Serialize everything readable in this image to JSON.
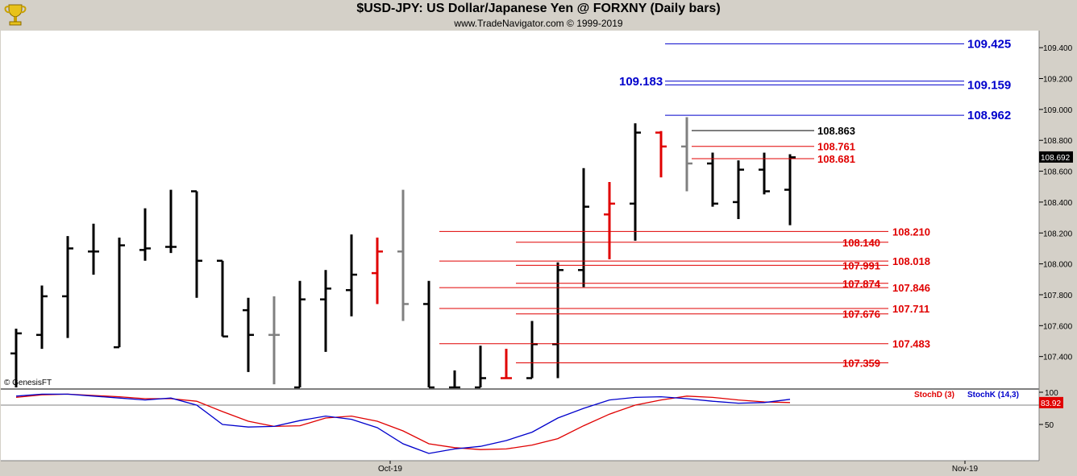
{
  "header": {
    "title": "$USD-JPY:  US Dollar/Japanese Yen @ FORXNY  (Daily bars)",
    "subtitle": "www.TradeNavigator.com © 1999-2019"
  },
  "watermark": "© GenesisFT",
  "colors": {
    "up": "#000000",
    "red": "#e00000",
    "gray": "#808080",
    "blue": "#0000cc"
  },
  "chart_data": [
    {
      "type": "ohlc",
      "ylim": [
        107.2,
        109.5
      ],
      "yticks": [
        "107.400",
        "107.600",
        "107.800",
        "108.000",
        "108.200",
        "108.400",
        "108.600",
        "108.800",
        "109.000",
        "109.200",
        "109.400"
      ],
      "last_price": "108.692",
      "x_labels": [
        "Oct-19",
        "Nov-19"
      ],
      "bars": [
        {
          "o": 107.42,
          "h": 107.58,
          "l": 107.2,
          "c": 107.55,
          "color": "black"
        },
        {
          "o": 107.54,
          "h": 107.86,
          "l": 107.45,
          "c": 107.79,
          "color": "black"
        },
        {
          "o": 107.79,
          "h": 108.18,
          "l": 107.52,
          "c": 108.1,
          "color": "black"
        },
        {
          "o": 108.08,
          "h": 108.26,
          "l": 107.93,
          "c": 108.08,
          "color": "black"
        },
        {
          "o": 107.46,
          "h": 108.17,
          "l": 107.46,
          "c": 108.12,
          "color": "black"
        },
        {
          "o": 108.09,
          "h": 108.36,
          "l": 108.02,
          "c": 108.1,
          "color": "black"
        },
        {
          "o": 108.11,
          "h": 108.48,
          "l": 108.07,
          "c": 108.11,
          "color": "black"
        },
        {
          "o": 108.47,
          "h": 108.47,
          "l": 107.78,
          "c": 108.02,
          "color": "black"
        },
        {
          "o": 108.02,
          "h": 108.02,
          "l": 107.53,
          "c": 107.53,
          "color": "black"
        },
        {
          "o": 107.7,
          "h": 107.78,
          "l": 107.3,
          "c": 107.54,
          "color": "black"
        },
        {
          "o": 107.54,
          "h": 107.79,
          "l": 107.22,
          "c": 107.54,
          "color": "gray"
        },
        {
          "o": 107.2,
          "h": 107.89,
          "l": 107.2,
          "c": 107.77,
          "color": "black"
        },
        {
          "o": 107.77,
          "h": 107.96,
          "l": 107.43,
          "c": 107.84,
          "color": "black"
        },
        {
          "o": 107.83,
          "h": 108.19,
          "l": 107.66,
          "c": 107.93,
          "color": "black"
        },
        {
          "o": 107.94,
          "h": 108.17,
          "l": 107.74,
          "c": 108.08,
          "color": "red"
        },
        {
          "o": 108.08,
          "h": 108.48,
          "l": 107.63,
          "c": 107.74,
          "color": "gray"
        },
        {
          "o": 107.74,
          "h": 107.89,
          "l": 107.2,
          "c": 107.2,
          "color": "black"
        },
        {
          "o": 107.2,
          "h": 107.31,
          "l": 107.2,
          "c": 107.2,
          "color": "black"
        },
        {
          "o": 107.2,
          "h": 107.47,
          "l": 107.2,
          "c": 107.26,
          "color": "black"
        },
        {
          "o": 107.26,
          "h": 107.45,
          "l": 107.26,
          "c": 107.26,
          "color": "red"
        },
        {
          "o": 107.26,
          "h": 107.63,
          "l": 107.26,
          "c": 107.48,
          "color": "black"
        },
        {
          "o": 107.48,
          "h": 108.01,
          "l": 107.26,
          "c": 107.96,
          "color": "black"
        },
        {
          "o": 107.96,
          "h": 108.62,
          "l": 107.85,
          "c": 108.37,
          "color": "black"
        },
        {
          "o": 108.32,
          "h": 108.53,
          "l": 108.03,
          "c": 108.39,
          "color": "red"
        },
        {
          "o": 108.39,
          "h": 108.91,
          "l": 108.15,
          "c": 108.85,
          "color": "black"
        },
        {
          "o": 108.85,
          "h": 108.86,
          "l": 108.56,
          "c": 108.76,
          "color": "red"
        },
        {
          "o": 108.76,
          "h": 108.95,
          "l": 108.47,
          "c": 108.65,
          "color": "gray"
        },
        {
          "o": 108.65,
          "h": 108.72,
          "l": 108.37,
          "c": 108.39,
          "color": "black"
        },
        {
          "o": 108.4,
          "h": 108.67,
          "l": 108.29,
          "c": 108.61,
          "color": "black"
        },
        {
          "o": 108.61,
          "h": 108.72,
          "l": 108.45,
          "c": 108.47,
          "color": "black"
        },
        {
          "o": 108.48,
          "h": 108.71,
          "l": 108.25,
          "c": 108.69,
          "color": "black"
        }
      ],
      "levels": [
        {
          "value": 109.425,
          "label": "109.425",
          "color": "blue",
          "side": "right"
        },
        {
          "value": 109.183,
          "label": "109.183",
          "color": "blue",
          "side": "left"
        },
        {
          "value": 109.159,
          "label": "109.159",
          "color": "blue",
          "side": "right"
        },
        {
          "value": 108.962,
          "label": "108.962",
          "color": "blue",
          "side": "right"
        },
        {
          "value": 108.863,
          "label": "108.863",
          "color": "black",
          "side": "near"
        },
        {
          "value": 108.761,
          "label": "108.761",
          "color": "red",
          "side": "near"
        },
        {
          "value": 108.681,
          "label": "108.681",
          "color": "red",
          "side": "near"
        },
        {
          "value": 108.21,
          "label": "108.210",
          "color": "red",
          "side": "far"
        },
        {
          "value": 108.14,
          "label": "108.140",
          "color": "red",
          "side": "near"
        },
        {
          "value": 108.018,
          "label": "108.018",
          "color": "red",
          "side": "far"
        },
        {
          "value": 107.991,
          "label": "107.991",
          "color": "red",
          "side": "near"
        },
        {
          "value": 107.874,
          "label": "107.874",
          "color": "red",
          "side": "near"
        },
        {
          "value": 107.846,
          "label": "107.846",
          "color": "red",
          "side": "far"
        },
        {
          "value": 107.711,
          "label": "107.711",
          "color": "red",
          "side": "far"
        },
        {
          "value": 107.676,
          "label": "107.676",
          "color": "red",
          "side": "near"
        },
        {
          "value": 107.483,
          "label": "107.483",
          "color": "red",
          "side": "far"
        },
        {
          "value": 107.359,
          "label": "107.359",
          "color": "red",
          "side": "near"
        }
      ]
    },
    {
      "type": "line",
      "ylim": [
        0,
        100
      ],
      "yticks": [
        "100",
        "50"
      ],
      "reference_line": 80,
      "last_value": "83.92",
      "legend": [
        "StochD (3)",
        "StochK (14,3)"
      ],
      "series": [
        {
          "name": "StochD (3)",
          "color": "red",
          "values": [
            92,
            96,
            97,
            95,
            93,
            90,
            90,
            86,
            70,
            55,
            47,
            48,
            60,
            63,
            55,
            40,
            20,
            14,
            11,
            12,
            18,
            28,
            48,
            66,
            80,
            88,
            94,
            92,
            88,
            85,
            84
          ]
        },
        {
          "name": "StochK (14,3)",
          "color": "blue",
          "values": [
            94,
            97,
            97,
            94,
            91,
            88,
            91,
            80,
            50,
            46,
            47,
            56,
            63,
            58,
            45,
            20,
            5,
            12,
            16,
            25,
            38,
            60,
            75,
            88,
            92,
            93,
            90,
            86,
            83,
            84,
            89
          ]
        }
      ]
    }
  ]
}
